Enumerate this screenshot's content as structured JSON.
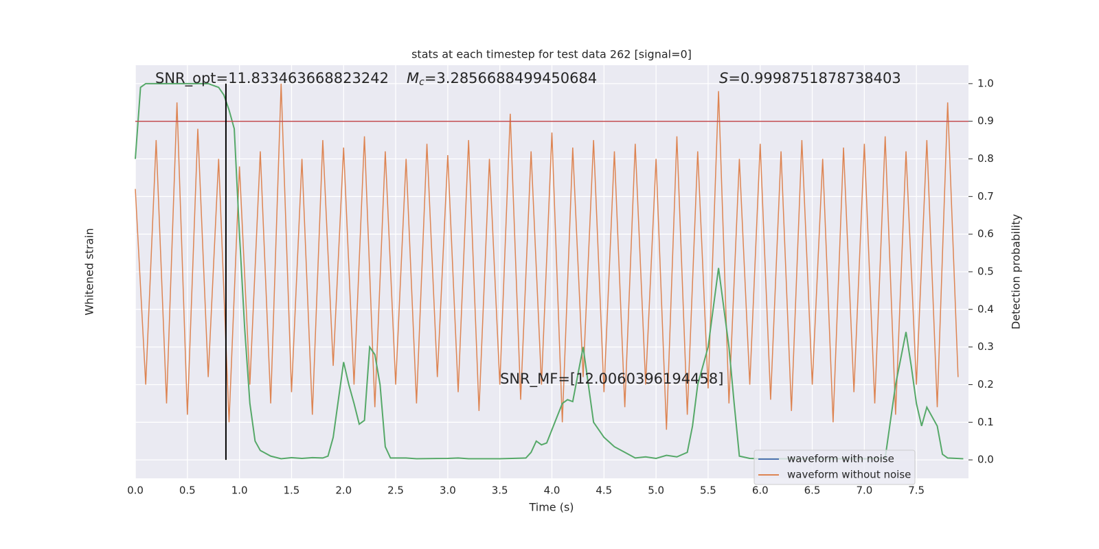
{
  "chart_data": {
    "type": "line",
    "title": "stats at each timestep for test data 262 [signal=0]",
    "xlabel": "Time (s)",
    "ylabel": "Whitened strain",
    "y2label": "Detection probability",
    "annotations": {
      "snr_opt": "SNR_opt=11.833463668823242",
      "mc_symbol": "M",
      "mc_sub": "c",
      "mc_value": "=3.2856688499450684",
      "s_symbol": "S",
      "s_value": "=0.9998751878738403",
      "snr_mf": "SNR_MF=[12.0060396194458]"
    },
    "xlim": [
      0,
      8.0
    ],
    "xticks": [
      {
        "value": 0,
        "label": "0.0"
      },
      0.5,
      {
        "value": 1,
        "label": "1.0"
      },
      1.5,
      {
        "value": 2,
        "label": "2.0"
      },
      2.5,
      {
        "value": 3,
        "label": "3.0"
      },
      3.5,
      {
        "value": 4,
        "label": "4.0"
      },
      4.5,
      {
        "value": 5,
        "label": "5.0"
      },
      5.5,
      {
        "value": 6,
        "label": "6.0"
      },
      6.5,
      {
        "value": 7,
        "label": "7.0"
      },
      7.5
    ],
    "y2lim": [
      -0.049,
      1.049
    ],
    "y2ticks": [
      {
        "value": 0,
        "label": "0.0"
      },
      0.1,
      0.2,
      0.3,
      0.4,
      0.5,
      0.6,
      0.7,
      0.8,
      0.9,
      {
        "value": 1,
        "label": "1.0"
      }
    ],
    "grid": true,
    "legend": "lower right",
    "threshold": {
      "y": 0.9,
      "color": "#c44e52"
    },
    "marker_time": {
      "x": 0.87,
      "color": "#000000"
    },
    "series": [
      {
        "name": "waveform with noise",
        "color": "#4c72b0",
        "axis": "y2",
        "x": [],
        "values": []
      },
      {
        "name": "waveform without noise",
        "color": "#dd8452",
        "axis": "y2",
        "x": [
          0,
          0.1,
          0.2,
          0.3,
          0.4,
          0.5,
          0.6,
          0.7,
          0.8,
          0.9,
          1.0,
          1.1,
          1.2,
          1.3,
          1.4,
          1.5,
          1.6,
          1.7,
          1.8,
          1.9,
          2.0,
          2.1,
          2.2,
          2.3,
          2.4,
          2.5,
          2.6,
          2.7,
          2.8,
          2.9,
          3.0,
          3.1,
          3.2,
          3.3,
          3.4,
          3.5,
          3.6,
          3.7,
          3.8,
          3.9,
          4.0,
          4.1,
          4.2,
          4.3,
          4.4,
          4.5,
          4.6,
          4.7,
          4.8,
          4.9,
          5.0,
          5.1,
          5.2,
          5.3,
          5.4,
          5.5,
          5.6,
          5.7,
          5.8,
          5.9,
          6.0,
          6.1,
          6.2,
          6.3,
          6.4,
          6.5,
          6.6,
          6.7,
          6.8,
          6.9,
          7.0,
          7.1,
          7.2,
          7.3,
          7.4,
          7.5,
          7.6,
          7.7,
          7.8,
          7.9
        ],
        "values": [
          0.72,
          0.2,
          0.85,
          0.15,
          0.95,
          0.12,
          0.88,
          0.22,
          0.8,
          0.1,
          0.78,
          0.2,
          0.82,
          0.15,
          1.0,
          0.18,
          0.8,
          0.12,
          0.85,
          0.25,
          0.83,
          0.2,
          0.86,
          0.14,
          0.82,
          0.2,
          0.8,
          0.15,
          0.84,
          0.22,
          0.81,
          0.18,
          0.85,
          0.13,
          0.8,
          0.2,
          0.92,
          0.16,
          0.82,
          0.2,
          0.87,
          0.1,
          0.83,
          0.22,
          0.85,
          0.18,
          0.82,
          0.14,
          0.84,
          0.2,
          0.8,
          0.08,
          0.86,
          0.12,
          0.82,
          0.19,
          0.98,
          0.15,
          0.8,
          0.2,
          0.84,
          0.16,
          0.82,
          0.13,
          0.85,
          0.2,
          0.8,
          0.1,
          0.83,
          0.18,
          0.84,
          0.15,
          0.86,
          0.12,
          0.82,
          0.2,
          0.85,
          0.14,
          0.95,
          0.22
        ]
      },
      {
        "name": "detection probability",
        "color": "#55a868",
        "axis": "y2",
        "x": [
          0.0,
          0.05,
          0.1,
          0.3,
          0.5,
          0.7,
          0.8,
          0.85,
          0.9,
          0.95,
          1.0,
          1.05,
          1.1,
          1.15,
          1.2,
          1.3,
          1.4,
          1.5,
          1.6,
          1.7,
          1.8,
          1.85,
          1.9,
          1.95,
          2.0,
          2.05,
          2.1,
          2.15,
          2.2,
          2.25,
          2.3,
          2.35,
          2.4,
          2.45,
          2.6,
          2.7,
          3.0,
          3.1,
          3.2,
          3.5,
          3.75,
          3.8,
          3.85,
          3.9,
          3.95,
          4.0,
          4.1,
          4.15,
          4.2,
          4.3,
          4.35,
          4.4,
          4.5,
          4.6,
          4.7,
          4.8,
          4.9,
          5.0,
          5.1,
          5.2,
          5.3,
          5.35,
          5.4,
          5.5,
          5.6,
          5.7,
          5.75,
          5.8,
          5.9,
          6.0,
          6.5,
          7.0,
          7.2,
          7.3,
          7.4,
          7.45,
          7.5,
          7.55,
          7.6,
          7.7,
          7.75,
          7.8,
          7.95
        ],
        "values": [
          0.8,
          0.99,
          1.0,
          1.0,
          1.0,
          1.0,
          0.99,
          0.97,
          0.93,
          0.88,
          0.6,
          0.35,
          0.15,
          0.05,
          0.025,
          0.01,
          0.003,
          0.006,
          0.004,
          0.006,
          0.005,
          0.01,
          0.06,
          0.16,
          0.26,
          0.2,
          0.15,
          0.095,
          0.105,
          0.3,
          0.28,
          0.2,
          0.035,
          0.005,
          0.005,
          0.003,
          0.004,
          0.005,
          0.003,
          0.003,
          0.005,
          0.02,
          0.05,
          0.04,
          0.045,
          0.08,
          0.15,
          0.16,
          0.155,
          0.3,
          0.2,
          0.1,
          0.06,
          0.035,
          0.02,
          0.005,
          0.008,
          0.004,
          0.012,
          0.008,
          0.02,
          0.09,
          0.2,
          0.3,
          0.51,
          0.3,
          0.15,
          0.01,
          0.004,
          0.003,
          0.003,
          0.003,
          0.005,
          0.2,
          0.34,
          0.25,
          0.15,
          0.09,
          0.14,
          0.09,
          0.015,
          0.005,
          0.003
        ]
      }
    ]
  }
}
